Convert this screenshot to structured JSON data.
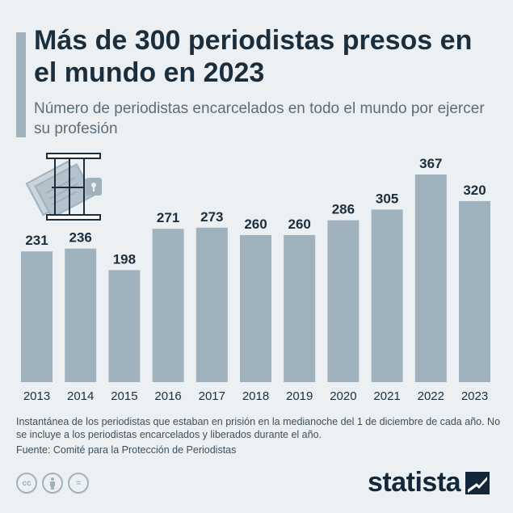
{
  "header": {
    "title": "Más de 300 periodistas presos en el mundo en 2023",
    "subtitle": "Número de periodistas encarcelados en todo el mundo por ejercer su profesión"
  },
  "chart_data": {
    "type": "bar",
    "title": "Más de 300 periodistas presos en el mundo en 2023",
    "subtitle": "Número de periodistas encarcelados en todo el mundo por ejercer su profesión",
    "categories": [
      "2013",
      "2014",
      "2015",
      "2016",
      "2017",
      "2018",
      "2019",
      "2020",
      "2021",
      "2022",
      "2023"
    ],
    "values": [
      231,
      236,
      198,
      271,
      273,
      260,
      260,
      286,
      305,
      367,
      320
    ],
    "xlabel": "",
    "ylabel": "",
    "ylim": [
      0,
      367
    ],
    "grid": false,
    "bar_color": "#9fb2bd"
  },
  "footer": {
    "note": "Instantánea de los periodistas que estaban en prisión en la medianoche del 1 de diciembre de cada año. No se incluye a los periodistas encarcelados y liberados durante el año.",
    "source": "Fuente: Comité para la Protección de Periodistas",
    "brand": "statista",
    "license_icons": [
      "cc-icon",
      "attribution-icon",
      "no-derivatives-icon"
    ],
    "license_text": [
      "cc",
      "="
    ]
  },
  "colors": {
    "background": "#ecf0f3",
    "bar": "#9fb2bd",
    "text_dark": "#1b2e3e",
    "text_muted": "#5d6d7a"
  }
}
